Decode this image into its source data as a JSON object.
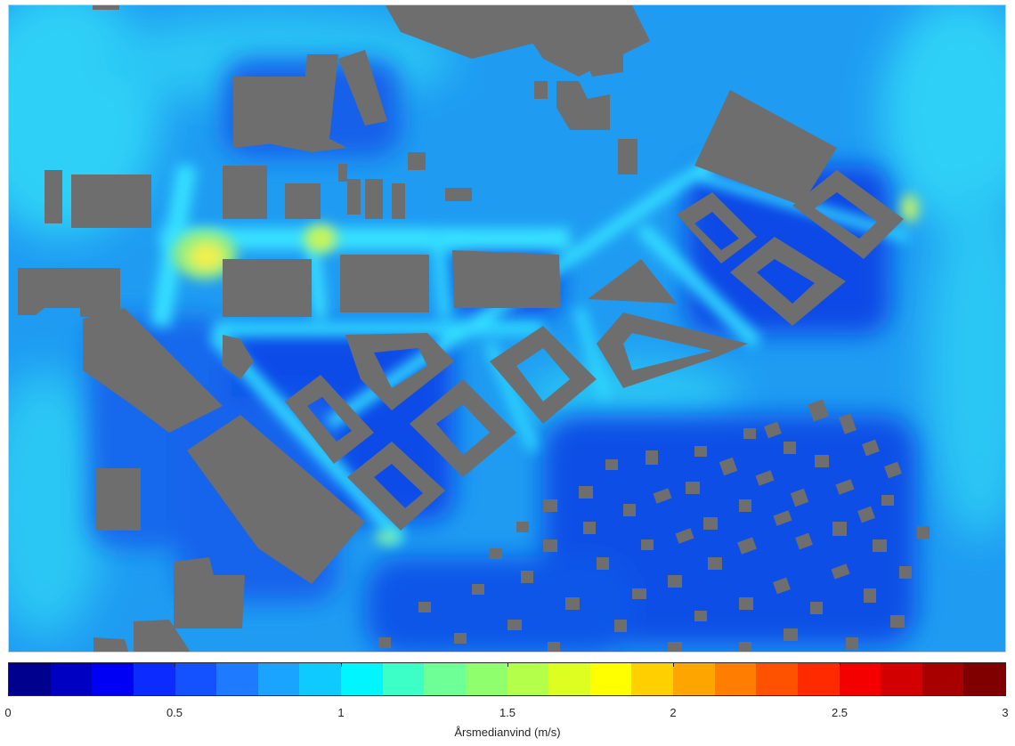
{
  "map": {
    "colors": {
      "building": "#6e6e6e",
      "background_light": "#29c8f5",
      "background_mid": "#1a8ef0",
      "background_dark": "#0c45e6",
      "channel_cyan": "#4ef0ff",
      "hotspot_yellow": "#f3f04a",
      "hotspot_green": "#9bf07a"
    }
  },
  "colorbar": {
    "label": "Årsmedianvind (m/s)",
    "min": 0,
    "max": 3,
    "colors": [
      "#00008f",
      "#0000c3",
      "#0000f5",
      "#0b2bff",
      "#1452ff",
      "#1e7aff",
      "#1aa3ff",
      "#0fcaff",
      "#00f5ff",
      "#3cffc8",
      "#6eff96",
      "#8fff6e",
      "#b4ff4a",
      "#dcff21",
      "#ffff00",
      "#ffd000",
      "#ffa500",
      "#ff7d00",
      "#ff5200",
      "#ff2a00",
      "#f50000",
      "#d20000",
      "#a80000",
      "#800000"
    ],
    "ticks": [
      {
        "value": 0,
        "label": "0"
      },
      {
        "value": 0.5,
        "label": "0.5"
      },
      {
        "value": 1,
        "label": "1"
      },
      {
        "value": 1.5,
        "label": "1.5"
      },
      {
        "value": 2,
        "label": "2"
      },
      {
        "value": 2.5,
        "label": "2.5"
      },
      {
        "value": 3,
        "label": "3"
      }
    ]
  }
}
